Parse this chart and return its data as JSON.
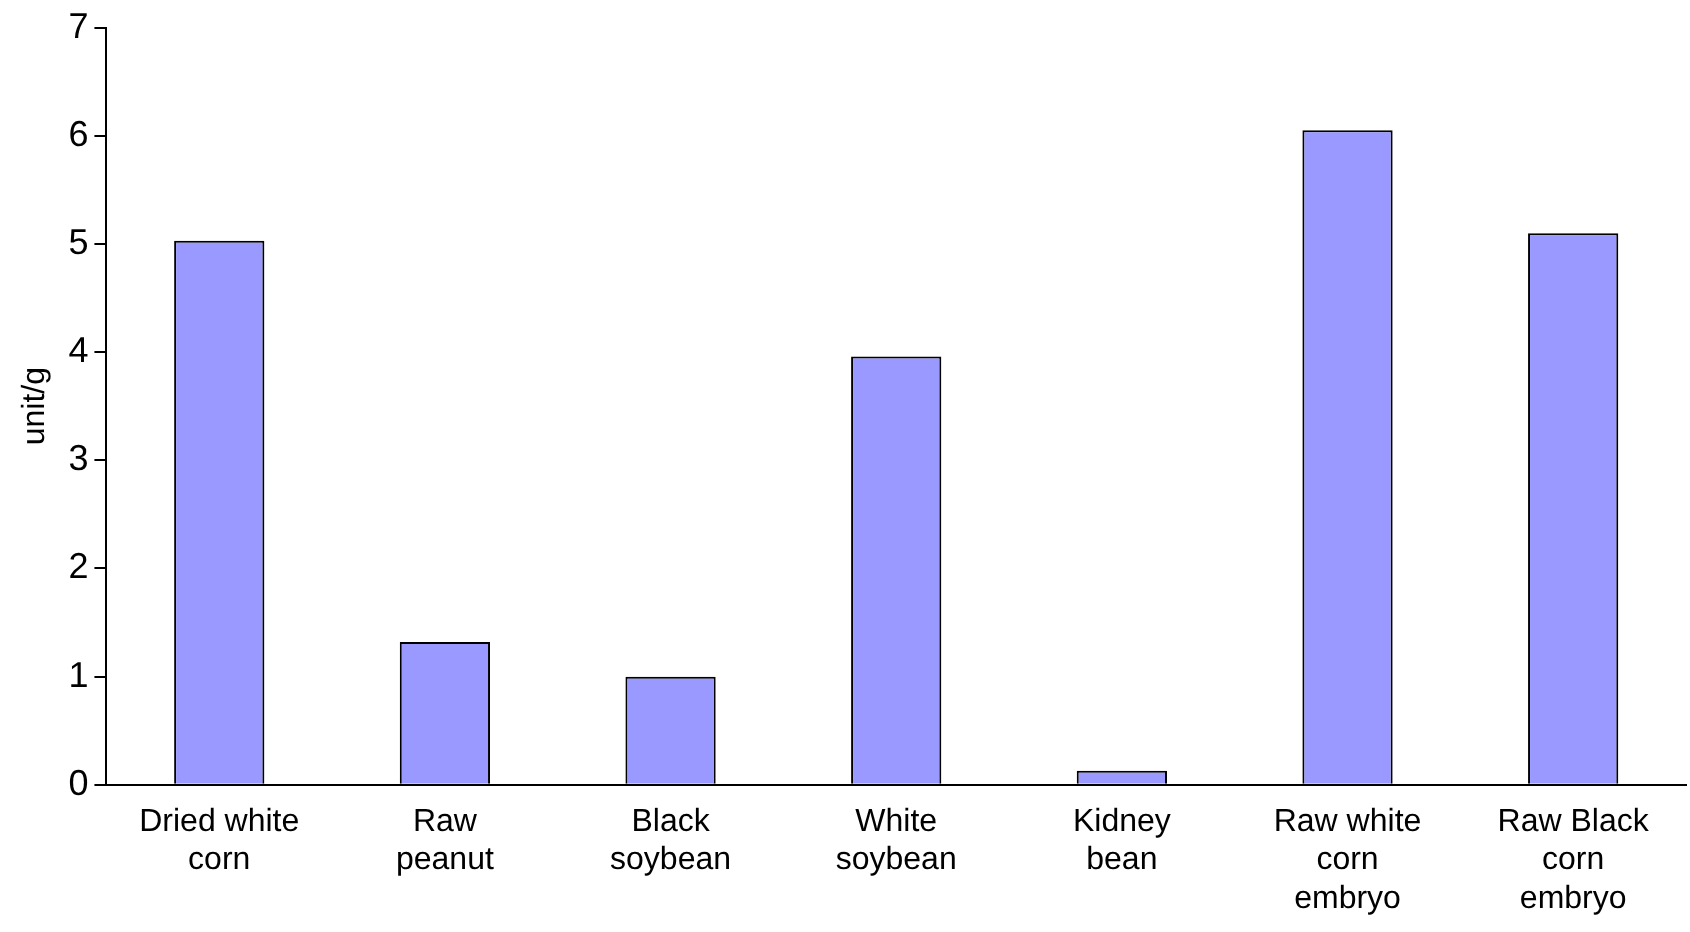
{
  "chart_data": {
    "type": "bar",
    "ylabel": "unit/g",
    "categories": [
      "Dried white corn",
      "Raw peanut",
      "Black soybean",
      "White soybean",
      "Kidney bean",
      "Raw white corn embryo",
      "Raw Black corn embryo"
    ],
    "values": [
      5.03,
      1.32,
      1.0,
      3.96,
      0.13,
      6.05,
      5.1
    ],
    "color": "#9999ff",
    "ylim": [
      0,
      7
    ],
    "yticks": [
      0,
      1,
      2,
      3,
      4,
      5,
      6,
      7
    ],
    "grid": false,
    "legend": false
  }
}
